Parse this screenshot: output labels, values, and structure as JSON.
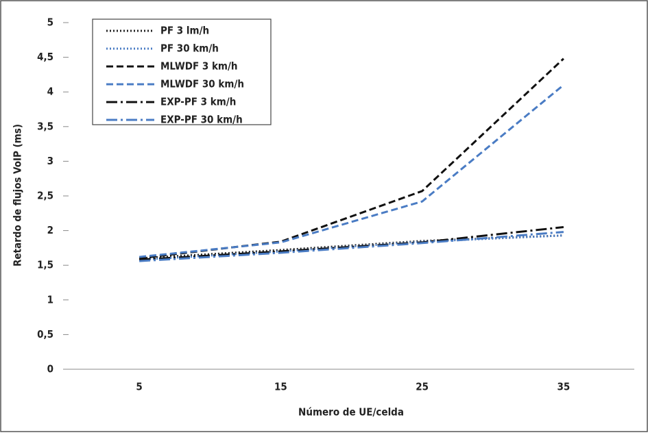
{
  "chart_data": {
    "type": "line",
    "ylabel": "Retardo de flujos VoIP (ms)",
    "xlabel": "Número de UE/celda",
    "categories": [
      "5",
      "15",
      "25",
      "35"
    ],
    "ylim": [
      0,
      5
    ],
    "yticks": [
      0,
      {
        "value": 0.5,
        "label": "0,5"
      },
      1,
      {
        "value": 1.5,
        "label": "1,5"
      },
      2,
      {
        "value": 2.5,
        "label": "2,5"
      },
      3,
      {
        "value": 3.5,
        "label": "3,5"
      },
      4,
      {
        "value": 4.5,
        "label": "4,5"
      },
      5
    ],
    "series": [
      {
        "name": "PF 3 lm/h",
        "color": "#222222",
        "style": "dotted",
        "values": [
          1.6,
          1.72,
          1.85,
          1.93
        ]
      },
      {
        "name": "PF 30 km/h",
        "color": "#4a7cc4",
        "style": "dotted",
        "values": [
          1.58,
          1.7,
          1.84,
          1.93
        ]
      },
      {
        "name": "MLWDF 3 km/h",
        "color": "#111111",
        "style": "dashed",
        "values": [
          1.6,
          1.84,
          2.57,
          4.48
        ]
      },
      {
        "name": "MLWDF 30 km/h",
        "color": "#4a7cc4",
        "style": "dashed",
        "values": [
          1.62,
          1.83,
          2.42,
          4.1
        ]
      },
      {
        "name": "EXP-PF 3 km/h",
        "color": "#111111",
        "style": "dashdot",
        "values": [
          1.58,
          1.7,
          1.83,
          2.05
        ]
      },
      {
        "name": "EXP-PF 30 km/h",
        "color": "#4a7cc4",
        "style": "dashdot",
        "values": [
          1.56,
          1.68,
          1.82,
          1.98
        ]
      }
    ]
  }
}
